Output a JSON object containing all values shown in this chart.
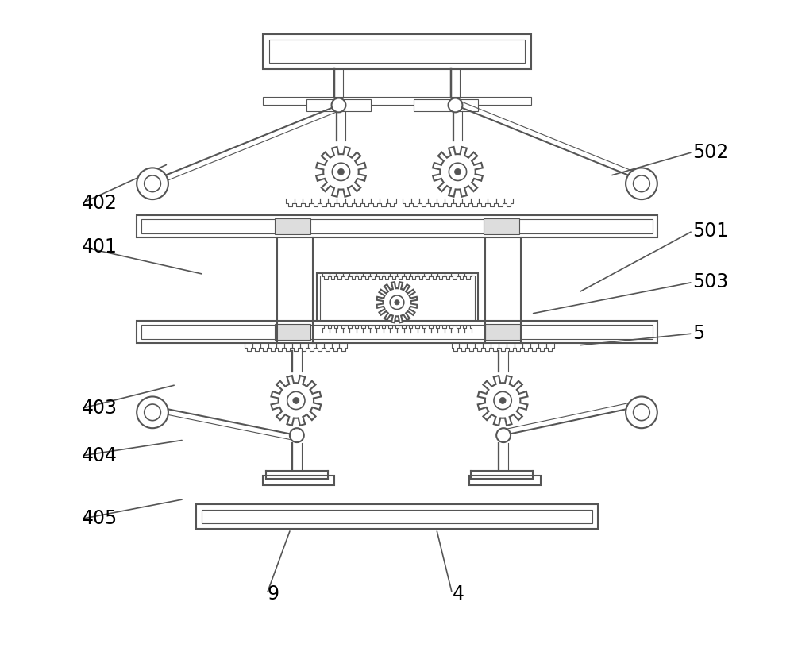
{
  "bg_color": "#ffffff",
  "line_color": "#555555",
  "lw": 1.5,
  "lw_thin": 0.8,
  "labels": [
    [
      "402",
      1.0,
      5.85,
      2.1,
      6.35
    ],
    [
      "502",
      8.75,
      6.5,
      7.7,
      6.2
    ],
    [
      "401",
      1.0,
      5.3,
      2.55,
      4.95
    ],
    [
      "501",
      8.75,
      5.5,
      7.3,
      4.72
    ],
    [
      "503",
      8.75,
      4.85,
      6.7,
      4.45
    ],
    [
      "5",
      8.75,
      4.2,
      7.3,
      4.05
    ],
    [
      "403",
      1.0,
      3.25,
      2.2,
      3.55
    ],
    [
      "404",
      1.0,
      2.65,
      2.3,
      2.85
    ],
    [
      "405",
      1.0,
      1.85,
      2.3,
      2.1
    ],
    [
      "9",
      3.35,
      0.9,
      3.65,
      1.72
    ],
    [
      "4",
      5.7,
      0.9,
      5.5,
      1.72
    ]
  ]
}
